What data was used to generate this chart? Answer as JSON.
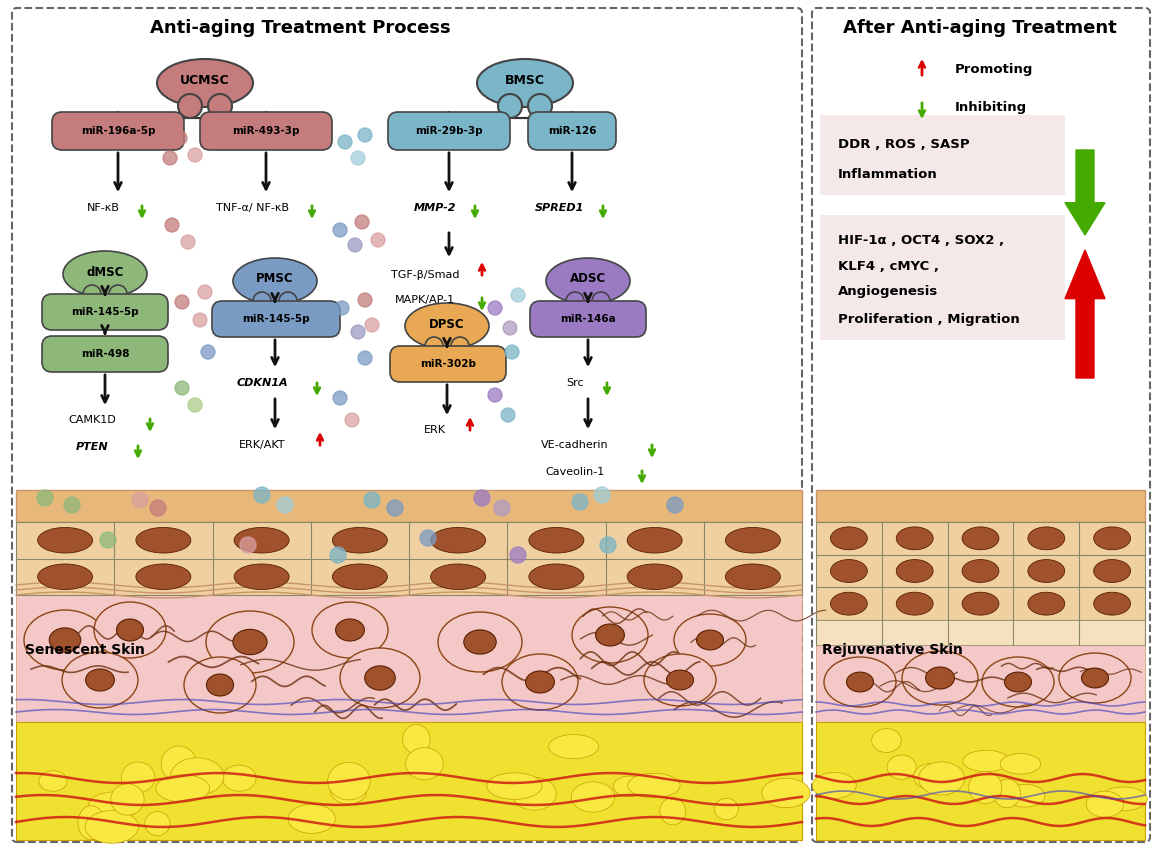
{
  "fig_width": 11.58,
  "fig_height": 8.5,
  "bg_color": "#ffffff",
  "left_panel_title": "Anti-aging Treatment Process",
  "right_panel_title": "After Anti-aging Treatment",
  "ucmsc_color": "#c47c7c",
  "bmsc_color": "#7ab5c8",
  "dmsc_color": "#8db87a",
  "pmsc_color": "#7a9bc4",
  "adsc_color": "#9b7ac4",
  "dpsc_color": "#e8a854",
  "red_arrow_color": "#dd0000",
  "green_arrow_color": "#44aa00",
  "ddr_box_color": "#f5e8e8",
  "hif_box_color": "#f5e8e8",
  "senescent_skin_label": "Senescent Skin",
  "rejuvenative_skin_label": "Rejuvenative Skin",
  "promoting_label": "Promoting",
  "inhibiting_label": "Inhibiting",
  "skin_orange": "#e8b87a",
  "skin_tan": "#f0d0a0",
  "skin_pink": "#f5c8c8",
  "skin_yellow": "#f5e040",
  "cell_brown": "#8b4513",
  "cell_brown_light": "#c8956a",
  "grid_line_color": "#555555"
}
